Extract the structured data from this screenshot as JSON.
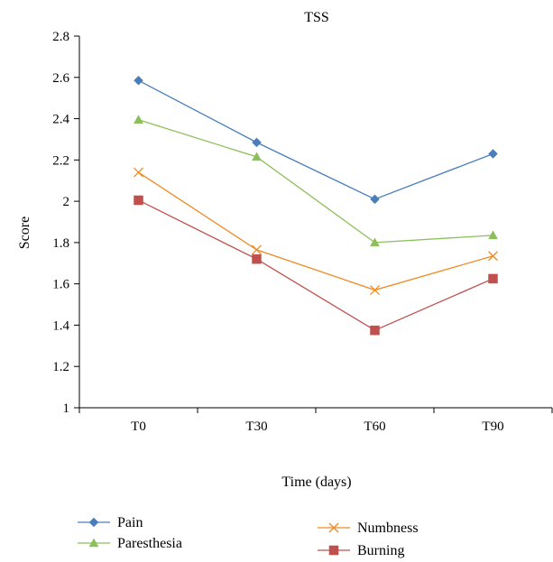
{
  "chart_data": {
    "type": "line",
    "title": "TSS",
    "xlabel": "Time (days)",
    "ylabel": "Score",
    "categories": [
      "T0",
      "T30",
      "T60",
      "T90"
    ],
    "ylim": [
      1,
      2.8
    ],
    "yticks": [
      "1",
      "1.2",
      "1.4",
      "1.6",
      "1.8",
      "2",
      "2.2",
      "2.4",
      "2.6",
      "2.8"
    ],
    "grid": false,
    "legend_position": "bottom",
    "series": [
      {
        "name": "Pain",
        "values": [
          2.585,
          2.285,
          2.01,
          2.23
        ],
        "color": "#4a7ebb",
        "marker": "diamond"
      },
      {
        "name": "Paresthesia",
        "values": [
          2.395,
          2.215,
          1.8,
          1.835
        ],
        "color": "#8cbf5a",
        "marker": "triangle"
      },
      {
        "name": "Numbness",
        "values": [
          2.14,
          1.765,
          1.57,
          1.735
        ],
        "color": "#f08a24",
        "marker": "x"
      },
      {
        "name": "Burning",
        "values": [
          2.005,
          1.72,
          1.375,
          1.625
        ],
        "color": "#c0504d",
        "marker": "square"
      }
    ]
  }
}
